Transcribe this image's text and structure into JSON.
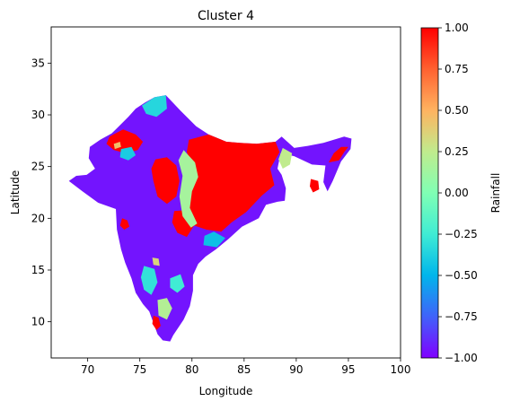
{
  "chart_data": {
    "type": "heatmap",
    "title": "Cluster 4",
    "xlabel": "Longitude",
    "ylabel": "Latitude",
    "xlim": [
      66.5,
      100
    ],
    "ylim": [
      6.5,
      38.5
    ],
    "xticks": [
      70,
      75,
      80,
      85,
      90,
      95,
      100
    ],
    "yticks": [
      10,
      15,
      20,
      25,
      30,
      35
    ],
    "grid": false,
    "colorbar": {
      "label": "Rainfall",
      "range": [
        -1.0,
        1.0
      ],
      "ticks": [
        1.0,
        0.75,
        0.5,
        0.25,
        0.0,
        -0.25,
        -0.5,
        -0.75,
        -1.0
      ],
      "tick_labels": [
        "1.00",
        "0.75",
        "0.50",
        "0.25",
        "0.00",
        "−0.25",
        "−0.50",
        "−0.75",
        "−1.00"
      ],
      "colormap": "rainbow"
    },
    "regions": [
      {
        "value": -0.95,
        "lonlat": [
          [
            68.2,
            23.6
          ],
          [
            69.5,
            22.6
          ],
          [
            71,
            21.5
          ],
          [
            72.7,
            20.9
          ],
          [
            72.8,
            18.9
          ],
          [
            73.2,
            17
          ],
          [
            73.6,
            15.7
          ],
          [
            74.2,
            14.2
          ],
          [
            74.6,
            12.8
          ],
          [
            75.3,
            11.7
          ],
          [
            75.9,
            11
          ],
          [
            76.3,
            9.9
          ],
          [
            76.7,
            8.8
          ],
          [
            77.2,
            8.2
          ],
          [
            77.9,
            8.1
          ],
          [
            78.2,
            8.7
          ],
          [
            78.6,
            9.3
          ],
          [
            79.2,
            10.2
          ],
          [
            79.8,
            11.5
          ],
          [
            80.1,
            13
          ],
          [
            80.1,
            14.5
          ],
          [
            80.6,
            15.6
          ],
          [
            81.3,
            16.3
          ],
          [
            82.3,
            17
          ],
          [
            83.5,
            18
          ],
          [
            84.8,
            19.2
          ],
          [
            86.4,
            20
          ],
          [
            87.1,
            21.3
          ],
          [
            88.2,
            21.6
          ],
          [
            88.9,
            21.7
          ],
          [
            89,
            22.9
          ],
          [
            88.6,
            24.2
          ],
          [
            88.2,
            24.8
          ],
          [
            88.5,
            26.3
          ],
          [
            89.8,
            26
          ],
          [
            91.5,
            25.2
          ],
          [
            92.8,
            25.1
          ],
          [
            92.6,
            23.5
          ],
          [
            93,
            22.6
          ],
          [
            93.5,
            23.6
          ],
          [
            94.3,
            25.5
          ],
          [
            95.2,
            26.7
          ],
          [
            95.3,
            27.7
          ],
          [
            94.6,
            27.9
          ],
          [
            92.6,
            27.3
          ],
          [
            91.1,
            27
          ],
          [
            89.8,
            26.8
          ],
          [
            88.6,
            27.9
          ],
          [
            88,
            27.4
          ],
          [
            86.2,
            27.2
          ],
          [
            84.6,
            27.3
          ],
          [
            83.3,
            27.4
          ],
          [
            81.6,
            28.1
          ],
          [
            80.4,
            28.9
          ],
          [
            78.9,
            30.4
          ],
          [
            77.5,
            31.9
          ],
          [
            76.4,
            31.7
          ],
          [
            75.5,
            31.2
          ],
          [
            74.6,
            30.6
          ],
          [
            73.9,
            29.8
          ],
          [
            73.2,
            29.1
          ],
          [
            72.3,
            28.2
          ],
          [
            71.2,
            27.6
          ],
          [
            70.2,
            26.9
          ],
          [
            70.1,
            25.8
          ],
          [
            70.7,
            24.8
          ],
          [
            69.9,
            24.2
          ],
          [
            68.9,
            24.1
          ]
        ]
      },
      {
        "value": 1.0,
        "lonlat": [
          [
            79.7,
            27.6
          ],
          [
            81.6,
            28.1
          ],
          [
            83.3,
            27.4
          ],
          [
            84.6,
            27.3
          ],
          [
            86.2,
            27.2
          ],
          [
            88,
            27.4
          ],
          [
            88.4,
            26.4
          ],
          [
            87.5,
            24.8
          ],
          [
            87.9,
            23.2
          ],
          [
            86.7,
            22.2
          ],
          [
            85.2,
            20.6
          ],
          [
            83.8,
            19.6
          ],
          [
            82.8,
            18.7
          ],
          [
            81.4,
            18.9
          ],
          [
            80.2,
            19.3
          ],
          [
            79.6,
            20.8
          ],
          [
            79.5,
            22.6
          ],
          [
            80.3,
            24
          ],
          [
            79.9,
            25.4
          ],
          [
            79.5,
            26.4
          ]
        ]
      },
      {
        "value": 1.0,
        "lonlat": [
          [
            72.1,
            27.9
          ],
          [
            73.4,
            28.6
          ],
          [
            74.6,
            28.1
          ],
          [
            75.3,
            27.4
          ],
          [
            74.8,
            26.6
          ],
          [
            73.6,
            26.3
          ],
          [
            72.5,
            26.6
          ],
          [
            71.8,
            27.2
          ]
        ]
      },
      {
        "value": 1.0,
        "lonlat": [
          [
            76.5,
            25.7
          ],
          [
            77.6,
            25.9
          ],
          [
            78.5,
            25.1
          ],
          [
            78.8,
            23.6
          ],
          [
            78.5,
            22.1
          ],
          [
            77.6,
            21.4
          ],
          [
            76.7,
            22.1
          ],
          [
            76.3,
            23.6
          ],
          [
            76.1,
            24.8
          ]
        ]
      },
      {
        "value": 1.0,
        "lonlat": [
          [
            78.3,
            20.7
          ],
          [
            79.6,
            20.8
          ],
          [
            80.2,
            19.3
          ],
          [
            79.5,
            18.2
          ],
          [
            78.6,
            18.6
          ],
          [
            78.1,
            19.6
          ]
        ]
      },
      {
        "value": 1.0,
        "lonlat": [
          [
            91.4,
            23.8
          ],
          [
            92.1,
            23.6
          ],
          [
            92.2,
            22.8
          ],
          [
            91.6,
            22.5
          ],
          [
            91.3,
            23.1
          ]
        ]
      },
      {
        "value": 1.0,
        "lonlat": [
          [
            93.1,
            25.4
          ],
          [
            94.1,
            25.6
          ],
          [
            94.6,
            26.4
          ],
          [
            95,
            26.9
          ],
          [
            94.3,
            26.9
          ],
          [
            93.6,
            26.3
          ]
        ]
      },
      {
        "value": 1.0,
        "lonlat": [
          [
            73.3,
            20
          ],
          [
            73.8,
            19.8
          ],
          [
            74,
            19.2
          ],
          [
            73.5,
            18.9
          ],
          [
            73.1,
            19.3
          ]
        ]
      },
      {
        "value": 1.0,
        "lonlat": [
          [
            76.3,
            10.6
          ],
          [
            76.8,
            10.4
          ],
          [
            77,
            9.6
          ],
          [
            76.6,
            9.2
          ],
          [
            76.2,
            9.8
          ]
        ]
      },
      {
        "value": 0.15,
        "lonlat": [
          [
            79.2,
            26.6
          ],
          [
            80.3,
            25.4
          ],
          [
            80.6,
            24
          ],
          [
            80,
            22.6
          ],
          [
            79.8,
            21
          ],
          [
            80.5,
            19.5
          ],
          [
            79.9,
            19.1
          ],
          [
            79.1,
            20.2
          ],
          [
            78.8,
            22.1
          ],
          [
            79.1,
            24.1
          ],
          [
            78.7,
            25.6
          ]
        ]
      },
      {
        "value": 0.25,
        "lonlat": [
          [
            88.7,
            26.8
          ],
          [
            89.6,
            26.3
          ],
          [
            89.4,
            25.2
          ],
          [
            88.7,
            24.8
          ],
          [
            88.3,
            25.7
          ]
        ]
      },
      {
        "value": -0.35,
        "lonlat": [
          [
            75.2,
            30.9
          ],
          [
            76.4,
            31.7
          ],
          [
            77.5,
            31.9
          ],
          [
            77.6,
            30.6
          ],
          [
            76.6,
            29.8
          ],
          [
            75.6,
            30.1
          ]
        ]
      },
      {
        "value": -0.3,
        "lonlat": [
          [
            75.4,
            15.4
          ],
          [
            76.4,
            15.1
          ],
          [
            76.7,
            13.8
          ],
          [
            76.1,
            12.6
          ],
          [
            75.4,
            13.1
          ],
          [
            75.1,
            14.3
          ]
        ]
      },
      {
        "value": 0.2,
        "lonlat": [
          [
            76.7,
            12.1
          ],
          [
            77.6,
            12.3
          ],
          [
            78.1,
            11.3
          ],
          [
            77.6,
            10.2
          ],
          [
            76.8,
            10.6
          ]
        ]
      },
      {
        "value": -0.25,
        "lonlat": [
          [
            77.9,
            14.2
          ],
          [
            78.9,
            14.6
          ],
          [
            79.3,
            13.4
          ],
          [
            78.6,
            12.8
          ],
          [
            77.9,
            13.3
          ]
        ]
      },
      {
        "value": -0.45,
        "lonlat": [
          [
            81.1,
            17.4
          ],
          [
            82.4,
            17.2
          ],
          [
            83.2,
            18.1
          ],
          [
            82.1,
            18.7
          ],
          [
            81.2,
            18.3
          ]
        ]
      },
      {
        "value": -0.4,
        "lonlat": [
          [
            73.2,
            26.7
          ],
          [
            74.2,
            26.9
          ],
          [
            74.6,
            26.1
          ],
          [
            73.9,
            25.6
          ],
          [
            73.1,
            25.9
          ]
        ]
      },
      {
        "value": 0.45,
        "lonlat": [
          [
            72.5,
            27.2
          ],
          [
            73.1,
            27.4
          ],
          [
            73.2,
            26.9
          ],
          [
            72.6,
            26.7
          ]
        ]
      },
      {
        "value": 0.35,
        "lonlat": [
          [
            76.2,
            16.2
          ],
          [
            76.8,
            16.1
          ],
          [
            76.9,
            15.4
          ],
          [
            76.3,
            15.5
          ]
        ]
      }
    ]
  }
}
